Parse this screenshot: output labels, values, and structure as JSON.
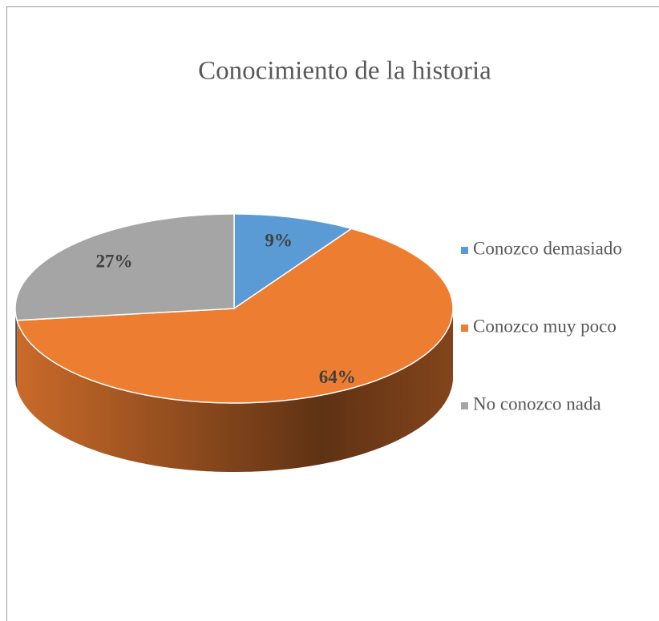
{
  "chart_data": {
    "type": "pie",
    "title": "Conocimiento de la historia",
    "categories": [
      "Conozco demasiado",
      "Conozco muy poco",
      "No conozco nada"
    ],
    "values": [
      9,
      64,
      27
    ],
    "value_labels": [
      "9%",
      "64%",
      "27%"
    ],
    "colors": [
      "#5b9bd5",
      "#ed7d31",
      "#a5a5a5"
    ],
    "legend": "right"
  }
}
